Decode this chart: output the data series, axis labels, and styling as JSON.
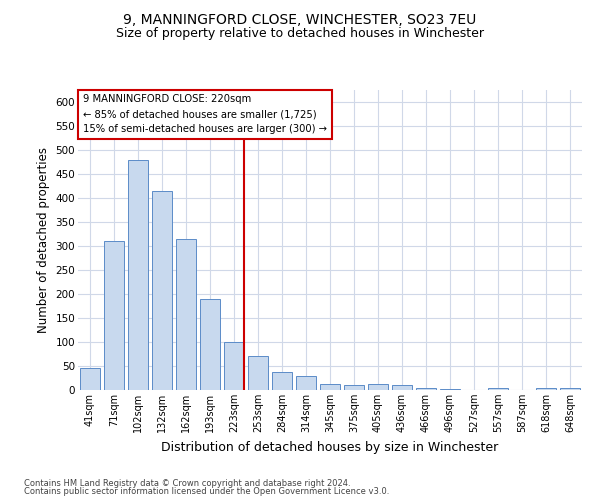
{
  "title1": "9, MANNINGFORD CLOSE, WINCHESTER, SO23 7EU",
  "title2": "Size of property relative to detached houses in Winchester",
  "xlabel": "Distribution of detached houses by size in Winchester",
  "ylabel": "Number of detached properties",
  "categories": [
    "41sqm",
    "71sqm",
    "102sqm",
    "132sqm",
    "162sqm",
    "193sqm",
    "223sqm",
    "253sqm",
    "284sqm",
    "314sqm",
    "345sqm",
    "375sqm",
    "405sqm",
    "436sqm",
    "466sqm",
    "496sqm",
    "527sqm",
    "557sqm",
    "587sqm",
    "618sqm",
    "648sqm"
  ],
  "bar_values": [
    45,
    310,
    480,
    415,
    315,
    190,
    100,
    70,
    38,
    30,
    13,
    10,
    13,
    10,
    5,
    3,
    1,
    5,
    0,
    5,
    5
  ],
  "bar_color": "#c8d9ee",
  "bar_edge_color": "#5b8cc8",
  "grid_color": "#d0d8e8",
  "ylim": [
    0,
    625
  ],
  "yticks": [
    0,
    50,
    100,
    150,
    200,
    250,
    300,
    350,
    400,
    450,
    500,
    550,
    600
  ],
  "property_line_index": 6,
  "property_line_color": "#cc0000",
  "annotation_text_line1": "9 MANNINGFORD CLOSE: 220sqm",
  "annotation_text_line2": "← 85% of detached houses are smaller (1,725)",
  "annotation_text_line3": "15% of semi-detached houses are larger (300) →",
  "footer1": "Contains HM Land Registry data © Crown copyright and database right 2024.",
  "footer2": "Contains public sector information licensed under the Open Government Licence v3.0.",
  "background_color": "#ffffff",
  "title1_fontsize": 10,
  "title2_fontsize": 9
}
